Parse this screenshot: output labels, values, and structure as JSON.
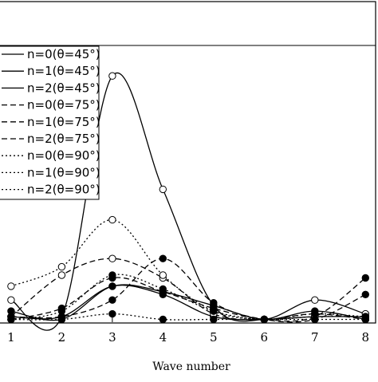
{
  "chart_data": {
    "type": "line",
    "title": "",
    "xlabel": "Wave number",
    "ylabel": "",
    "x": [
      1,
      2,
      3,
      4,
      5,
      6,
      7,
      8
    ],
    "xlim": [
      0.75,
      8.2
    ],
    "ylim": [
      0,
      1
    ],
    "grid": false,
    "legend_position": "top-left",
    "series": [
      {
        "name": "n=0(θ=45°)",
        "line_style": "solid",
        "marker": "open-circle",
        "values": [
          0.08,
          0.02,
          0.89,
          0.48,
          0.06,
          0.01,
          0.08,
          0.03
        ]
      },
      {
        "name": "n=1(θ=45°)",
        "line_style": "solid",
        "marker": "filled-circle",
        "values": [
          0.02,
          0.02,
          0.13,
          0.1,
          0.02,
          0.01,
          0.02,
          0.02
        ]
      },
      {
        "name": "n=2(θ=45°)",
        "line_style": "solid",
        "marker": "filled-circle",
        "values": [
          0.04,
          0.01,
          0.13,
          0.11,
          0.06,
          0.01,
          0.04,
          0.01
        ]
      },
      {
        "name": "n=0(θ=75°)",
        "line_style": "dashed",
        "marker": "open-circle",
        "values": [
          0.02,
          0.17,
          0.23,
          0.16,
          0.03,
          0.01,
          0.03,
          0.01
        ]
      },
      {
        "name": "n=1(θ=75°)",
        "line_style": "dashed",
        "marker": "filled-circle",
        "values": [
          0.01,
          0.05,
          0.16,
          0.11,
          0.05,
          0.01,
          0.02,
          0.16
        ]
      },
      {
        "name": "n=2(θ=75°)",
        "line_style": "dashed",
        "marker": "filled-circle",
        "values": [
          0.02,
          0.02,
          0.08,
          0.23,
          0.07,
          0.01,
          0.01,
          0.1
        ]
      },
      {
        "name": "n=0(θ=90°)",
        "line_style": "dotted",
        "marker": "open-circle",
        "values": [
          0.13,
          0.2,
          0.37,
          0.17,
          0.04,
          0.01,
          0.02,
          0.02
        ]
      },
      {
        "name": "n=1(θ=90°)",
        "line_style": "dotted",
        "marker": "filled-circle",
        "values": [
          0.01,
          0.04,
          0.17,
          0.12,
          0.04,
          0.01,
          0.03,
          0.02
        ]
      },
      {
        "name": "n=2(θ=90°)",
        "line_style": "dotted",
        "marker": "filled-circle",
        "values": [
          0.01,
          0.01,
          0.03,
          0.01,
          0.01,
          0.01,
          0.01,
          0.01
        ]
      }
    ]
  }
}
